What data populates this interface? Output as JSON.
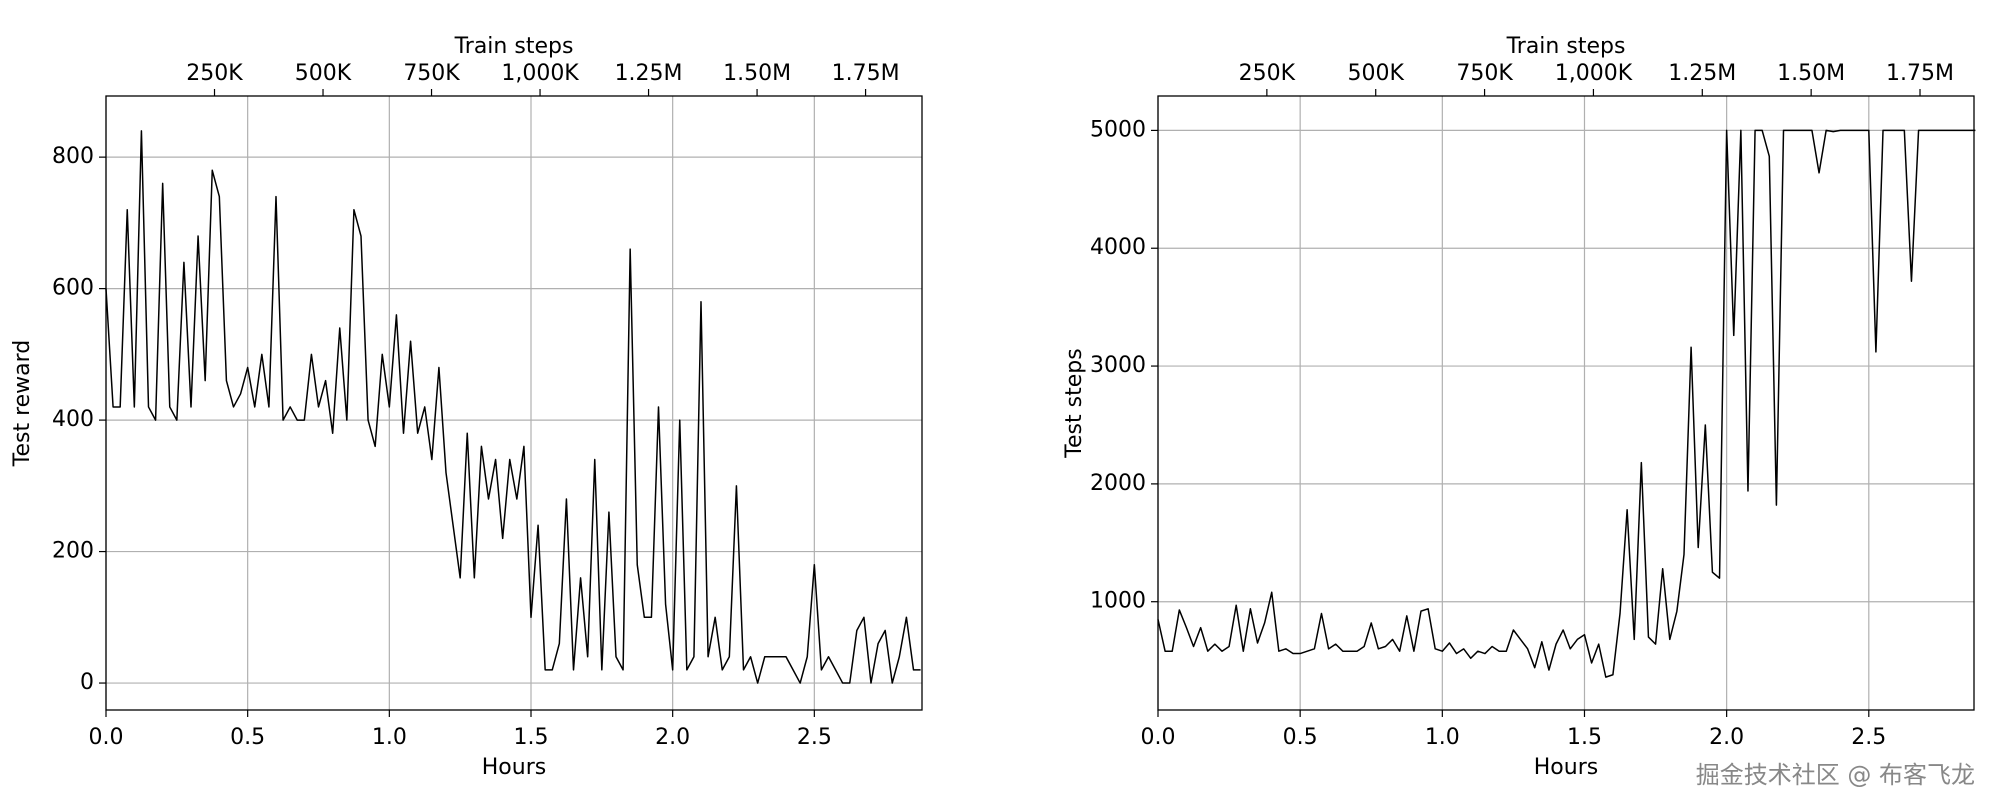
{
  "chart_data": [
    {
      "type": "line",
      "xlabel": "Hours",
      "ylabel": "Test reward",
      "x2label": "Train steps",
      "color": "#000000",
      "grid": true,
      "xlim": [
        0,
        2.88
      ],
      "ylim": [
        -41,
        893
      ],
      "x2lim": [
        0,
        1880000
      ],
      "xticks": [
        {
          "value": 0,
          "label": "0.0"
        },
        0.5,
        {
          "value": 1,
          "label": "1.0"
        },
        1.5,
        {
          "value": 2,
          "label": "2.0"
        },
        2.5
      ],
      "x2ticks": [
        {
          "value": 250000,
          "label": "250K"
        },
        {
          "value": 500000,
          "label": "500K"
        },
        {
          "value": 750000,
          "label": "750K"
        },
        {
          "value": 1000000,
          "label": "1,000K"
        },
        {
          "value": 1250000,
          "label": "1.25M"
        },
        {
          "value": 1500000,
          "label": "1.50M"
        },
        {
          "value": 1750000,
          "label": "1.75M"
        }
      ],
      "yticks": [
        0,
        200,
        400,
        600,
        800
      ],
      "x": [
        0,
        0.025,
        0.05,
        0.075,
        0.1,
        0.125,
        0.15,
        0.175,
        0.2,
        0.225,
        0.25,
        0.275,
        0.3,
        0.325,
        0.35,
        0.375,
        0.4,
        0.425,
        0.45,
        0.475,
        0.5,
        0.525,
        0.55,
        0.575,
        0.6,
        0.625,
        0.65,
        0.675,
        0.7,
        0.725,
        0.75,
        0.775,
        0.8,
        0.825,
        0.85,
        0.875,
        0.9,
        0.925,
        0.95,
        0.975,
        1,
        1.025,
        1.05,
        1.075,
        1.1,
        1.125,
        1.15,
        1.175,
        1.2,
        1.225,
        1.25,
        1.275,
        1.3,
        1.325,
        1.35,
        1.375,
        1.4,
        1.425,
        1.45,
        1.475,
        1.5,
        1.525,
        1.55,
        1.575,
        1.6,
        1.625,
        1.65,
        1.675,
        1.7,
        1.725,
        1.75,
        1.775,
        1.8,
        1.825,
        1.85,
        1.875,
        1.9,
        1.925,
        1.95,
        1.975,
        2,
        2.025,
        2.05,
        2.075,
        2.1,
        2.125,
        2.15,
        2.175,
        2.2,
        2.225,
        2.25,
        2.275,
        2.3,
        2.325,
        2.35,
        2.375,
        2.4,
        2.425,
        2.45,
        2.475,
        2.5,
        2.525,
        2.55,
        2.575,
        2.6,
        2.625,
        2.65,
        2.675,
        2.7,
        2.725,
        2.75,
        2.775,
        2.8,
        2.825,
        2.85,
        2.875
      ],
      "values": [
        600,
        420,
        420,
        720,
        420,
        840,
        420,
        400,
        760,
        420,
        400,
        640,
        420,
        680,
        460,
        780,
        740,
        460,
        420,
        440,
        480,
        420,
        500,
        420,
        740,
        400,
        420,
        400,
        400,
        500,
        420,
        460,
        380,
        540,
        400,
        720,
        680,
        400,
        360,
        500,
        420,
        560,
        380,
        520,
        380,
        420,
        340,
        480,
        320,
        240,
        160,
        380,
        160,
        360,
        280,
        340,
        220,
        340,
        280,
        360,
        100,
        240,
        20,
        20,
        60,
        280,
        20,
        160,
        40,
        340,
        20,
        260,
        40,
        20,
        660,
        180,
        100,
        100,
        420,
        120,
        20,
        400,
        20,
        40,
        580,
        40,
        100,
        20,
        40,
        300,
        20,
        40,
        0,
        40,
        40,
        40,
        40,
        20,
        0,
        40,
        180,
        20,
        40,
        20,
        0,
        0,
        80,
        100,
        0,
        60,
        80,
        0,
        40,
        100,
        20,
        20
      ]
    },
    {
      "type": "line",
      "xlabel": "Hours",
      "ylabel": "Test steps",
      "x2label": "Train steps",
      "color": "#000000",
      "grid": true,
      "xlim": [
        0,
        2.87
      ],
      "ylim": [
        81,
        5292
      ],
      "x2lim": [
        0,
        1874000
      ],
      "xticks": [
        {
          "value": 0,
          "label": "0.0"
        },
        0.5,
        {
          "value": 1,
          "label": "1.0"
        },
        1.5,
        {
          "value": 2,
          "label": "2.0"
        },
        2.5
      ],
      "x2ticks": [
        {
          "value": 250000,
          "label": "250K"
        },
        {
          "value": 500000,
          "label": "500K"
        },
        {
          "value": 750000,
          "label": "750K"
        },
        {
          "value": 1000000,
          "label": "1,000K"
        },
        {
          "value": 1250000,
          "label": "1.25M"
        },
        {
          "value": 1500000,
          "label": "1.50M"
        },
        {
          "value": 1750000,
          "label": "1.75M"
        }
      ],
      "yticks": [
        1000,
        2000,
        3000,
        4000,
        5000
      ],
      "x": [
        0,
        0.025,
        0.05,
        0.075,
        0.1,
        0.125,
        0.15,
        0.175,
        0.2,
        0.225,
        0.25,
        0.275,
        0.3,
        0.325,
        0.35,
        0.375,
        0.4,
        0.425,
        0.45,
        0.475,
        0.5,
        0.525,
        0.55,
        0.575,
        0.6,
        0.625,
        0.65,
        0.675,
        0.7,
        0.725,
        0.75,
        0.775,
        0.8,
        0.825,
        0.85,
        0.875,
        0.9,
        0.925,
        0.95,
        0.975,
        1,
        1.025,
        1.05,
        1.075,
        1.1,
        1.125,
        1.15,
        1.175,
        1.2,
        1.225,
        1.25,
        1.275,
        1.3,
        1.325,
        1.35,
        1.375,
        1.4,
        1.425,
        1.45,
        1.475,
        1.5,
        1.525,
        1.55,
        1.575,
        1.6,
        1.625,
        1.65,
        1.675,
        1.7,
        1.725,
        1.75,
        1.775,
        1.8,
        1.825,
        1.85,
        1.875,
        1.9,
        1.925,
        1.95,
        1.975,
        2,
        2.025,
        2.05,
        2.075,
        2.1,
        2.125,
        2.15,
        2.175,
        2.2,
        2.225,
        2.25,
        2.275,
        2.3,
        2.325,
        2.35,
        2.375,
        2.4,
        2.425,
        2.45,
        2.475,
        2.5,
        2.525,
        2.55,
        2.575,
        2.6,
        2.625,
        2.65,
        2.675,
        2.7,
        2.725,
        2.75,
        2.775,
        2.8,
        2.825,
        2.85,
        2.875
      ],
      "values": [
        850,
        580,
        580,
        930,
        780,
        620,
        780,
        580,
        640,
        580,
        620,
        970,
        580,
        940,
        650,
        820,
        1080,
        580,
        600,
        560,
        560,
        580,
        600,
        900,
        600,
        640,
        580,
        580,
        580,
        620,
        820,
        600,
        620,
        680,
        580,
        880,
        580,
        920,
        940,
        600,
        580,
        650,
        560,
        600,
        520,
        580,
        560,
        620,
        580,
        580,
        760,
        680,
        600,
        440,
        660,
        420,
        640,
        760,
        600,
        680,
        720,
        480,
        640,
        360,
        380,
        900,
        1780,
        680,
        2180,
        700,
        640,
        1280,
        680,
        920,
        1400,
        3160,
        1460,
        2500,
        1250,
        1200,
        5000,
        3260,
        5000,
        1940,
        5000,
        5000,
        4780,
        1820,
        5000,
        5000,
        5000,
        5000,
        5000,
        4640,
        5000,
        4990,
        5000,
        5000,
        5000,
        5000,
        5000,
        3120,
        5000,
        5000,
        5000,
        5000,
        3720,
        5000,
        5000,
        5000,
        5000,
        5000,
        5000,
        5000,
        5000,
        5000
      ]
    }
  ],
  "watermark": "掘金技术社区 @ 布客飞龙"
}
